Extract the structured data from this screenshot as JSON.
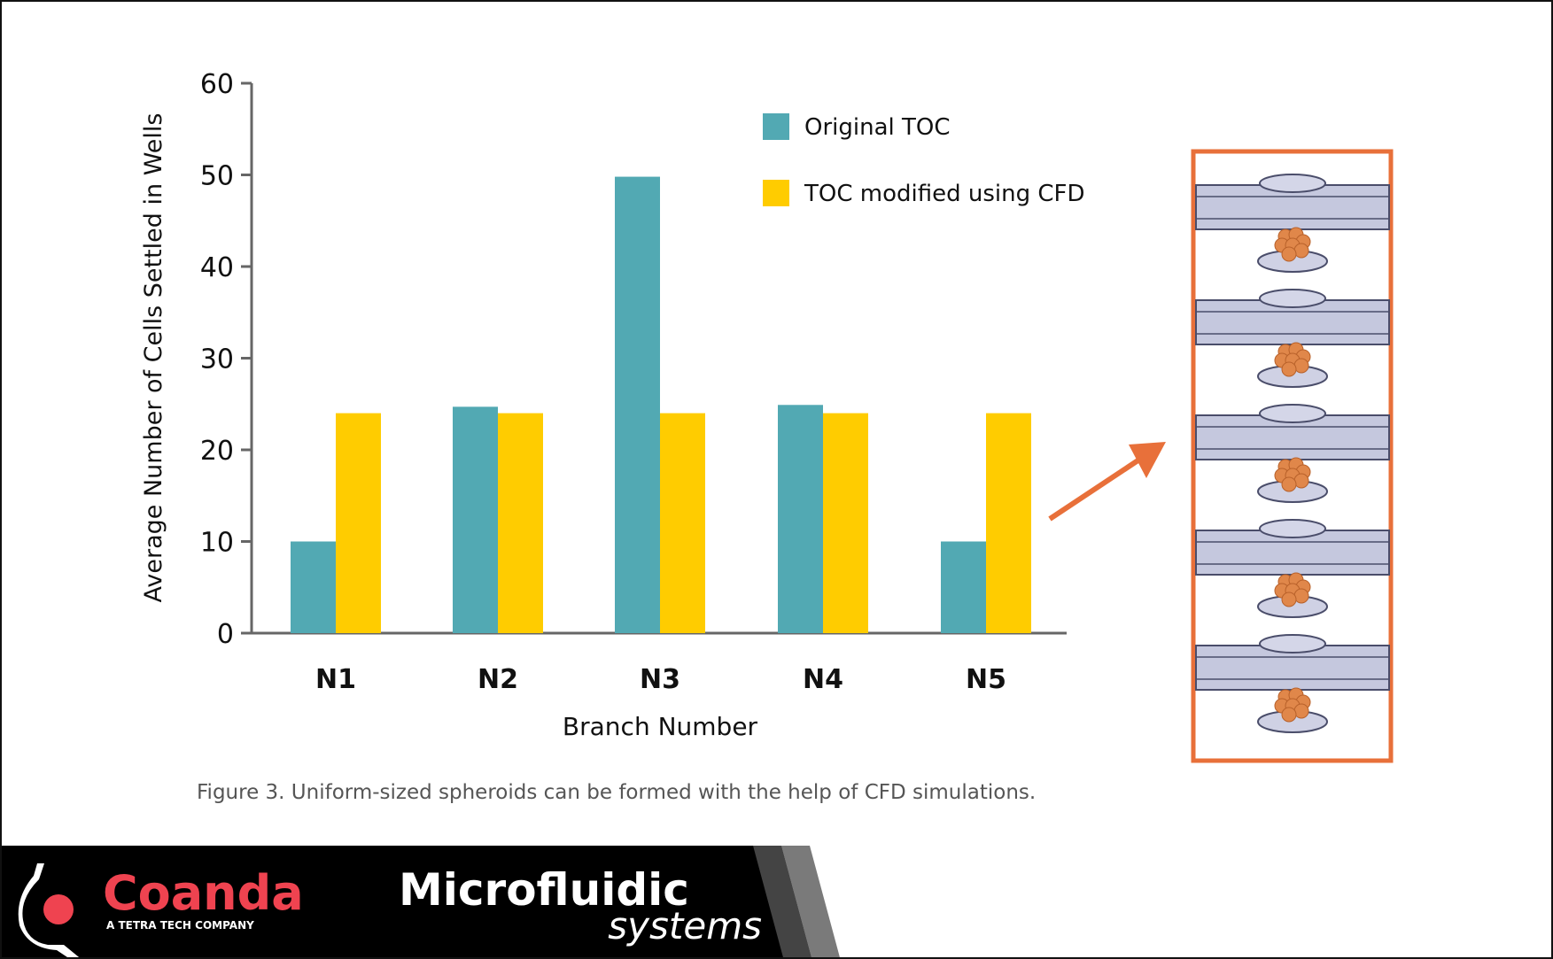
{
  "chart_data": {
    "type": "bar",
    "categories": [
      "N1",
      "N2",
      "N3",
      "N4",
      "N5"
    ],
    "series": [
      {
        "name": "Original TOC",
        "values": [
          10,
          24.7,
          49.8,
          24.9,
          10
        ],
        "color": "#52a9b3"
      },
      {
        "name": "TOC modified using CFD",
        "values": [
          24,
          24,
          24,
          24,
          24
        ],
        "color": "#ffcc00"
      }
    ],
    "xlabel": "Branch Number",
    "ylabel": "Average Number of Cells Settled in Wells",
    "ylim": [
      0,
      60
    ],
    "yticks": [
      0,
      10,
      20,
      30,
      40,
      50,
      60
    ],
    "grid": false,
    "legend": "top-right"
  },
  "caption": "Figure 3. Uniform-sized spheroids can be formed with the help of CFD simulations.",
  "illustration": {
    "wells": 5,
    "frame_color": "#e8703a",
    "arrow_color": "#e8703a"
  },
  "footer": {
    "brand": "Coanda",
    "tagline": "A TETRA TECH COMPANY",
    "product_line1": "Microfluidic",
    "product_line2": "systems",
    "brand_color": "#ef4350"
  }
}
